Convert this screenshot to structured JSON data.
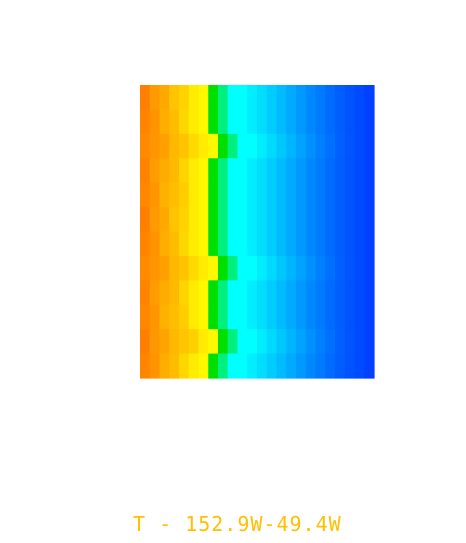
{
  "caption": {
    "text": "T - 152.9W-49.4W",
    "color": "#ffc000"
  },
  "heatmap": {
    "type": "heatmap",
    "rows": 12,
    "cols": 24,
    "colormap": [
      "#ff8000",
      "#ffa000",
      "#ffc000",
      "#ffe000",
      "#ffff00",
      "#00e000",
      "#00ffff",
      "#00c8ff",
      "#0090ff",
      "#0060ff",
      "#0040ff"
    ],
    "band_start_cols": [
      7,
      7,
      8,
      7,
      7,
      7,
      7,
      8,
      7,
      7,
      8,
      7
    ]
  }
}
